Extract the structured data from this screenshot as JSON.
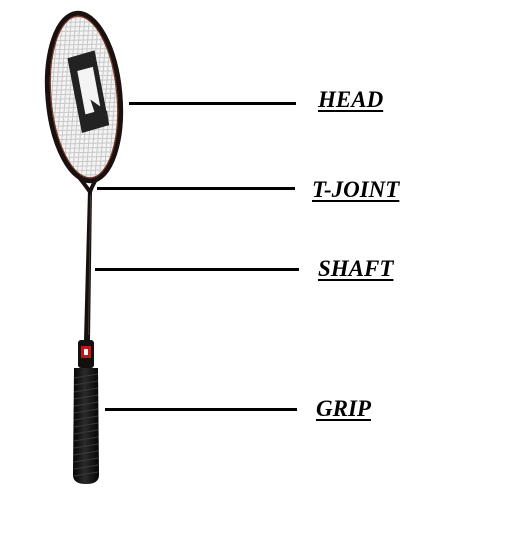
{
  "labels": {
    "head": "HEAD",
    "t_joint": "T-JOINT",
    "shaft": "SHAFT",
    "grip": "GRIP"
  },
  "colors": {
    "background": "#ffffff",
    "frame": "#1a1010",
    "frame_accent": "#7a3a2a",
    "strings": "#d8d8d8",
    "logo": "#222222",
    "grip": "#111111",
    "collar": "#c01818",
    "line": "#000000"
  },
  "icons": {
    "head_logo": "brand-logo-icon"
  }
}
